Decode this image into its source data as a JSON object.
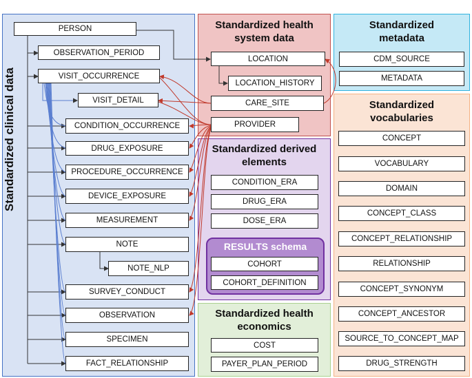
{
  "colors": {
    "clinical_bg": "#d9e3f4",
    "clinical_border": "#4472c4",
    "health_system_bg": "#f0c4c4",
    "health_system_border": "#c0504d",
    "metadata_bg": "#c5e9f6",
    "metadata_border": "#2fb2de",
    "vocab_bg": "#fbe4d5",
    "vocab_border": "#f4b183",
    "derived_bg": "#e3d5ee",
    "derived_border": "#7030a0",
    "econ_bg": "#e2efd9",
    "econ_border": "#a9d18e",
    "results_fill": "#b28bd0",
    "blue_line": "#4472c4",
    "red_line": "#c0392b"
  },
  "clinical": {
    "title": "Standardized clinical data",
    "tables": {
      "person": "PERSON",
      "observation_period": "OBSERVATION_PERIOD",
      "visit_occurrence": "VISIT_OCCURRENCE",
      "visit_detail": "VISIT_DETAIL",
      "condition_occurrence": "CONDITION_OCCURRENCE",
      "drug_exposure": "DRUG_EXPOSURE",
      "procedure_occurrence": "PROCEDURE_OCCURRENCE",
      "device_exposure": "DEVICE_EXPOSURE",
      "measurement": "MEASUREMENT",
      "note": "NOTE",
      "note_nlp": "NOTE_NLP",
      "survey_conduct": "SURVEY_CONDUCT",
      "observation": "OBSERVATION",
      "specimen": "SPECIMEN",
      "fact_relationship": "FACT_RELATIONSHIP"
    }
  },
  "health_system": {
    "title": "Standardized health system data",
    "tables": {
      "location": "LOCATION",
      "location_history": "LOCATION_HISTORY",
      "care_site": "CARE_SITE",
      "provider": "PROVIDER"
    }
  },
  "metadata": {
    "title": "Standardized metadata",
    "tables": {
      "cdm_source": "CDM_SOURCE",
      "metadata": "METADATA"
    }
  },
  "vocabularies": {
    "title": "Standardized vocabularies",
    "tables": {
      "concept": "CONCEPT",
      "vocabulary": "VOCABULARY",
      "domain": "DOMAIN",
      "concept_class": "CONCEPT_CLASS",
      "concept_relationship": "CONCEPT_RELATIONSHIP",
      "relationship": "RELATIONSHIP",
      "concept_synonym": "CONCEPT_SYNONYM",
      "concept_ancestor": "CONCEPT_ANCESTOR",
      "source_to_concept_map": "SOURCE_TO_CONCEPT_MAP",
      "drug_strength": "DRUG_STRENGTH"
    }
  },
  "derived": {
    "title": "Standardized derived elements",
    "tables": {
      "condition_era": "CONDITION_ERA",
      "drug_era": "DRUG_ERA",
      "dose_era": "DOSE_ERA"
    }
  },
  "results": {
    "title": "RESULTS schema",
    "tables": {
      "cohort": "COHORT",
      "cohort_definition": "COHORT_DEFINITION"
    }
  },
  "economics": {
    "title": "Standardized health economics",
    "tables": {
      "cost": "COST",
      "payer_plan_period": "PAYER_PLAN_PERIOD"
    }
  }
}
